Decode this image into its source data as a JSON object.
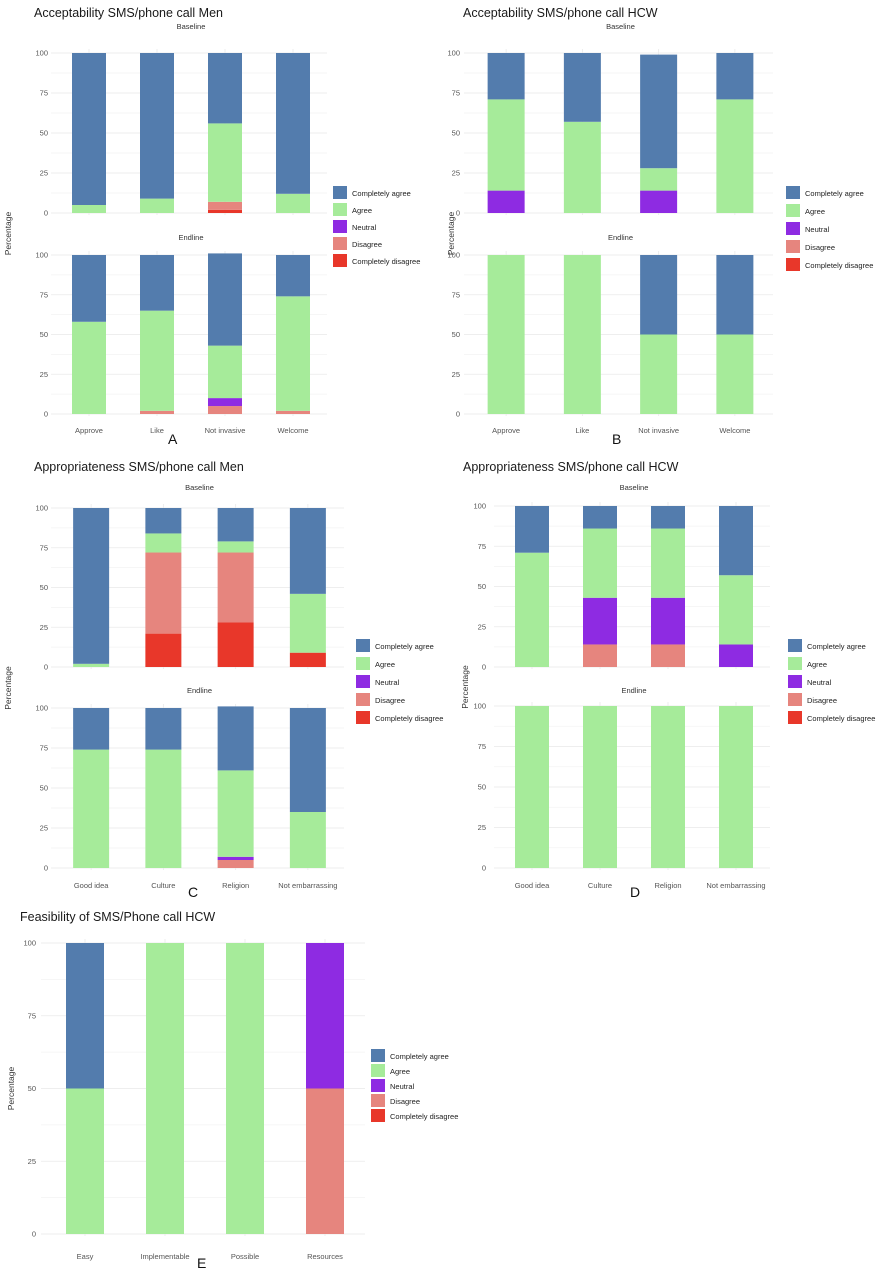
{
  "colors": {
    "Completely agree": "#537cad",
    "Agree": "#a6eb9a",
    "Neutral": "#8e2be2",
    "Disagree": "#e6857e",
    "Completely disagree": "#e8372a"
  },
  "legend_order": [
    "Completely agree",
    "Agree",
    "Neutral",
    "Disagree",
    "Completely disagree"
  ],
  "y_label": "Percentage",
  "chart_data": [
    {
      "id": "A",
      "panel_label": "A",
      "type": "bar",
      "stacked": true,
      "title": "Acceptability SMS/phone call Men",
      "ylabel": "Percentage",
      "ylim": [
        0,
        100
      ],
      "yticks": [
        0,
        25,
        50,
        75,
        100
      ],
      "categories": [
        "Approve",
        "Like",
        "Not invasive",
        "Welcome"
      ],
      "facets": [
        {
          "name": "Baseline",
          "series": [
            {
              "name": "Completely disagree",
              "values": [
                0,
                0,
                2,
                0
              ]
            },
            {
              "name": "Disagree",
              "values": [
                0,
                0,
                5,
                0
              ]
            },
            {
              "name": "Neutral",
              "values": [
                0,
                0,
                0,
                0
              ]
            },
            {
              "name": "Agree",
              "values": [
                5,
                9,
                49,
                12
              ]
            },
            {
              "name": "Completely agree",
              "values": [
                95,
                91,
                44,
                88
              ]
            }
          ]
        },
        {
          "name": "Endline",
          "series": [
            {
              "name": "Completely disagree",
              "values": [
                0,
                0,
                0,
                0
              ]
            },
            {
              "name": "Disagree",
              "values": [
                0,
                2,
                5,
                2
              ]
            },
            {
              "name": "Neutral",
              "values": [
                0,
                0,
                5,
                0
              ]
            },
            {
              "name": "Agree",
              "values": [
                58,
                63,
                33,
                72
              ]
            },
            {
              "name": "Completely agree",
              "values": [
                42,
                35,
                58,
                26
              ]
            }
          ]
        }
      ]
    },
    {
      "id": "B",
      "panel_label": "B",
      "type": "bar",
      "stacked": true,
      "title": "Acceptability SMS/phone call HCW",
      "ylabel": "Percentage",
      "ylim": [
        0,
        100
      ],
      "yticks": [
        0,
        25,
        50,
        75,
        100
      ],
      "categories": [
        "Approve",
        "Like",
        "Not invasive",
        "Welcome"
      ],
      "facets": [
        {
          "name": "Baseline",
          "series": [
            {
              "name": "Completely disagree",
              "values": [
                0,
                0,
                0,
                0
              ]
            },
            {
              "name": "Disagree",
              "values": [
                0,
                0,
                0,
                0
              ]
            },
            {
              "name": "Neutral",
              "values": [
                14,
                0,
                14,
                0
              ]
            },
            {
              "name": "Agree",
              "values": [
                57,
                57,
                14,
                71
              ]
            },
            {
              "name": "Completely agree",
              "values": [
                29,
                43,
                71,
                29
              ]
            }
          ]
        },
        {
          "name": "Endline",
          "series": [
            {
              "name": "Completely disagree",
              "values": [
                0,
                0,
                0,
                0
              ]
            },
            {
              "name": "Disagree",
              "values": [
                0,
                0,
                0,
                0
              ]
            },
            {
              "name": "Neutral",
              "values": [
                0,
                0,
                0,
                0
              ]
            },
            {
              "name": "Agree",
              "values": [
                100,
                100,
                50,
                50
              ]
            },
            {
              "name": "Completely agree",
              "values": [
                0,
                0,
                50,
                50
              ]
            }
          ]
        }
      ]
    },
    {
      "id": "C",
      "panel_label": "C",
      "type": "bar",
      "stacked": true,
      "title": "Appropriateness SMS/phone call Men",
      "ylabel": "Percentage",
      "ylim": [
        0,
        100
      ],
      "yticks": [
        0,
        25,
        50,
        75,
        100
      ],
      "categories": [
        "Good idea",
        "Culture",
        "Religion",
        "Not embarrassing"
      ],
      "facets": [
        {
          "name": "Baseline",
          "series": [
            {
              "name": "Completely disagree",
              "values": [
                0,
                21,
                28,
                9
              ]
            },
            {
              "name": "Disagree",
              "values": [
                0,
                51,
                44,
                0
              ]
            },
            {
              "name": "Neutral",
              "values": [
                0,
                0,
                0,
                0
              ]
            },
            {
              "name": "Agree",
              "values": [
                2,
                12,
                7,
                37
              ]
            },
            {
              "name": "Completely agree",
              "values": [
                98,
                16,
                21,
                54
              ]
            }
          ]
        },
        {
          "name": "Endline",
          "series": [
            {
              "name": "Completely disagree",
              "values": [
                0,
                0,
                0,
                0
              ]
            },
            {
              "name": "Disagree",
              "values": [
                0,
                0,
                5,
                0
              ]
            },
            {
              "name": "Neutral",
              "values": [
                0,
                0,
                2,
                0
              ]
            },
            {
              "name": "Agree",
              "values": [
                74,
                74,
                54,
                35
              ]
            },
            {
              "name": "Completely agree",
              "values": [
                26,
                26,
                40,
                65
              ]
            }
          ]
        }
      ]
    },
    {
      "id": "D",
      "panel_label": "D",
      "type": "bar",
      "stacked": true,
      "title": "Appropriateness SMS/phone call HCW",
      "ylabel": "Percentage",
      "ylim": [
        0,
        100
      ],
      "yticks": [
        0,
        25,
        50,
        75,
        100
      ],
      "categories": [
        "Good idea",
        "Culture",
        "Religion",
        "Not embarrassing"
      ],
      "facets": [
        {
          "name": "Baseline",
          "series": [
            {
              "name": "Completely disagree",
              "values": [
                0,
                0,
                0,
                0
              ]
            },
            {
              "name": "Disagree",
              "values": [
                0,
                14,
                14,
                0
              ]
            },
            {
              "name": "Neutral",
              "values": [
                0,
                29,
                29,
                14
              ]
            },
            {
              "name": "Agree",
              "values": [
                71,
                43,
                43,
                43
              ]
            },
            {
              "name": "Completely agree",
              "values": [
                29,
                14,
                14,
                43
              ]
            }
          ]
        },
        {
          "name": "Endline",
          "series": [
            {
              "name": "Completely disagree",
              "values": [
                0,
                0,
                0,
                0
              ]
            },
            {
              "name": "Disagree",
              "values": [
                0,
                0,
                0,
                0
              ]
            },
            {
              "name": "Neutral",
              "values": [
                0,
                0,
                0,
                0
              ]
            },
            {
              "name": "Agree",
              "values": [
                100,
                100,
                100,
                100
              ]
            },
            {
              "name": "Completely agree",
              "values": [
                0,
                0,
                0,
                0
              ]
            }
          ]
        }
      ]
    },
    {
      "id": "E",
      "panel_label": "E",
      "type": "bar",
      "stacked": true,
      "title": "Feasibility of SMS/Phone call HCW",
      "ylabel": "Percentage",
      "ylim": [
        0,
        100
      ],
      "yticks": [
        0,
        25,
        50,
        75,
        100
      ],
      "categories": [
        "Easy",
        "Implementable",
        "Possible",
        "Resources"
      ],
      "facets": [
        {
          "name": "",
          "series": [
            {
              "name": "Completely disagree",
              "values": [
                0,
                0,
                0,
                0
              ]
            },
            {
              "name": "Disagree",
              "values": [
                0,
                0,
                0,
                50
              ]
            },
            {
              "name": "Neutral",
              "values": [
                0,
                0,
                0,
                50
              ]
            },
            {
              "name": "Agree",
              "values": [
                50,
                100,
                100,
                0
              ]
            },
            {
              "name": "Completely agree",
              "values": [
                50,
                0,
                0,
                0
              ]
            }
          ]
        }
      ]
    }
  ]
}
